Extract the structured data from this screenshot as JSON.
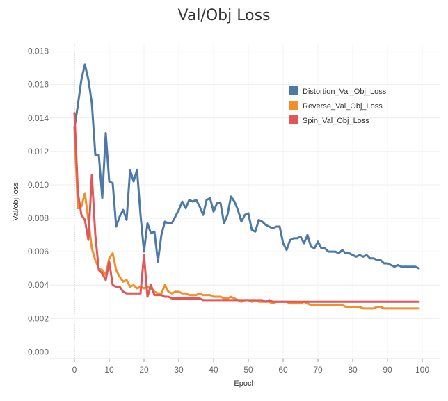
{
  "chart_data": {
    "type": "line",
    "title": "Val/Obj Loss",
    "xlabel": "Epoch",
    "ylabel": "Val/obj loss",
    "xlim": [
      -7,
      105
    ],
    "ylim": [
      -0.0004,
      0.0184
    ],
    "xticks": [
      0,
      10,
      20,
      30,
      40,
      50,
      60,
      70,
      80,
      90,
      100
    ],
    "yticks": [
      0,
      0.002,
      0.004,
      0.006,
      0.008,
      0.01,
      0.012,
      0.014,
      0.016,
      0.018
    ],
    "ytick_labels": [
      "0.000",
      "0.002",
      "0.004",
      "0.006",
      "0.008",
      "0.010",
      "0.012",
      "0.014",
      "0.016",
      "0.018"
    ],
    "grid": true,
    "legend_position": "top-right",
    "series": [
      {
        "name": "Distortion_Val_Obj_Loss",
        "color": "#4e79a7",
        "values": [
          0.0134,
          0.0148,
          0.0163,
          0.0172,
          0.0163,
          0.0149,
          0.0118,
          0.0118,
          0.0092,
          0.0131,
          0.0102,
          0.0101,
          0.0075,
          0.0081,
          0.0085,
          0.0079,
          0.0109,
          0.0102,
          0.0109,
          0.0082,
          0.006,
          0.0077,
          0.0071,
          0.0072,
          0.0054,
          0.007,
          0.0078,
          0.0077,
          0.0077,
          0.0081,
          0.0085,
          0.009,
          0.0086,
          0.0091,
          0.009,
          0.0091,
          0.0087,
          0.0082,
          0.0091,
          0.0092,
          0.0084,
          0.0089,
          0.0089,
          0.0077,
          0.0082,
          0.0093,
          0.009,
          0.0085,
          0.0078,
          0.0082,
          0.0083,
          0.0073,
          0.0072,
          0.0079,
          0.0078,
          0.0076,
          0.0075,
          0.0074,
          0.0075,
          0.0075,
          0.0065,
          0.0061,
          0.0067,
          0.0068,
          0.0068,
          0.0069,
          0.0065,
          0.007,
          0.0063,
          0.0062,
          0.0066,
          0.0062,
          0.0062,
          0.006,
          0.006,
          0.006,
          0.0059,
          0.0061,
          0.0059,
          0.0059,
          0.0058,
          0.0057,
          0.0058,
          0.0057,
          0.0058,
          0.0056,
          0.0056,
          0.0055,
          0.0055,
          0.0053,
          0.0053,
          0.0052,
          0.0051,
          0.0052,
          0.0051,
          0.0051,
          0.0051,
          0.0051,
          0.0051,
          0.005
        ]
      },
      {
        "name": "Reverse_Val_Obj_Loss",
        "color": "#f28e2b",
        "values": [
          0.0133,
          0.0086,
          0.0087,
          0.0095,
          0.0079,
          0.0062,
          0.0055,
          0.005,
          0.0049,
          0.0046,
          0.0056,
          0.0059,
          0.0049,
          0.0045,
          0.0042,
          0.0043,
          0.0039,
          0.004,
          0.0038,
          0.0039,
          0.0038,
          0.0039,
          0.0038,
          0.0036,
          0.0035,
          0.0035,
          0.004,
          0.0036,
          0.0035,
          0.0036,
          0.0036,
          0.0035,
          0.0035,
          0.0034,
          0.0034,
          0.0034,
          0.0035,
          0.0034,
          0.0034,
          0.0034,
          0.0033,
          0.0033,
          0.0033,
          0.0032,
          0.0032,
          0.0033,
          0.0032,
          0.0031,
          0.003,
          0.0031,
          0.0031,
          0.003,
          0.0031,
          0.003,
          0.003,
          0.003,
          0.003,
          0.0029,
          0.003,
          0.003,
          0.003,
          0.003,
          0.0029,
          0.0029,
          0.0029,
          0.0029,
          0.003,
          0.0029,
          0.0028,
          0.0028,
          0.0028,
          0.0028,
          0.0028,
          0.0028,
          0.0028,
          0.0028,
          0.0028,
          0.0028,
          0.0027,
          0.0027,
          0.0027,
          0.0027,
          0.0027,
          0.0026,
          0.0026,
          0.0026,
          0.0026,
          0.0027,
          0.0027,
          0.0026,
          0.0026,
          0.0026,
          0.0026,
          0.0026,
          0.0026,
          0.0026,
          0.0026,
          0.0026,
          0.0026,
          0.0026
        ]
      },
      {
        "name": "Spin_Val_Obj_Loss",
        "color": "#e15759",
        "values": [
          0.0143,
          0.0095,
          0.0082,
          0.0079,
          0.0067,
          0.0106,
          0.007,
          0.0049,
          0.0047,
          0.0043,
          0.0054,
          0.004,
          0.0039,
          0.0039,
          0.0036,
          0.0035,
          0.0035,
          0.0035,
          0.0035,
          0.0035,
          0.0058,
          0.0033,
          0.004,
          0.0034,
          0.0034,
          0.0034,
          0.0033,
          0.0033,
          0.0032,
          0.0032,
          0.0032,
          0.0032,
          0.0032,
          0.0032,
          0.0032,
          0.0032,
          0.0032,
          0.0031,
          0.0031,
          0.0031,
          0.0031,
          0.0031,
          0.0031,
          0.0031,
          0.0031,
          0.0031,
          0.0031,
          0.0031,
          0.0031,
          0.0031,
          0.0031,
          0.0031,
          0.0031,
          0.0031,
          0.0031,
          0.003,
          0.0031,
          0.003,
          0.003,
          0.003,
          0.003,
          0.003,
          0.003,
          0.003,
          0.003,
          0.003,
          0.003,
          0.003,
          0.003,
          0.003,
          0.003,
          0.003,
          0.003,
          0.003,
          0.003,
          0.003,
          0.003,
          0.003,
          0.003,
          0.003,
          0.003,
          0.003,
          0.003,
          0.003,
          0.003,
          0.003,
          0.003,
          0.003,
          0.003,
          0.003,
          0.003,
          0.003,
          0.003,
          0.003,
          0.003,
          0.003,
          0.003,
          0.003,
          0.003,
          0.003
        ]
      }
    ]
  }
}
